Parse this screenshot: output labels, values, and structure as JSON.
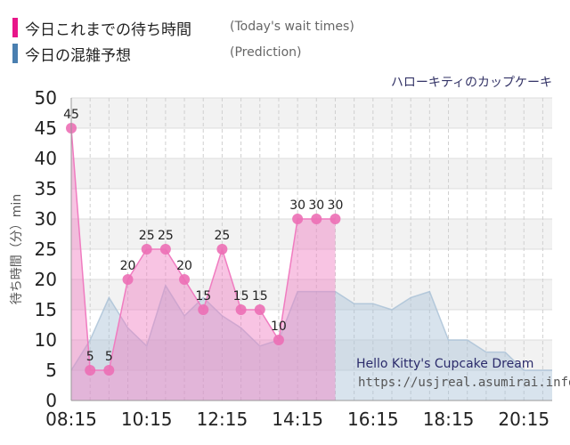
{
  "legend": {
    "today_label": "今日これまでの待ち時間",
    "today_label_en": "(Today's wait times)",
    "today_color": "#e8168a",
    "prediction_label": "今日の混雑予想",
    "prediction_label_en": "(Prediction)",
    "prediction_color": "#4a7fb0"
  },
  "attraction_name": "ハローキティのカップケーキ",
  "watermark": {
    "name": "Hello Kitty's Cupcake Dream",
    "url": "https://usjreal.asumirai.info"
  },
  "chart_data": {
    "type": "area",
    "ylabel": "待ち時間（分）min",
    "ylim": [
      0,
      50
    ],
    "yticks": [
      0,
      5,
      10,
      15,
      20,
      25,
      30,
      35,
      40,
      45,
      50
    ],
    "xlim": [
      "08:15",
      "21:00"
    ],
    "xticks": [
      "08:15",
      "10:15",
      "12:15",
      "14:15",
      "16:15",
      "18:15",
      "20:15"
    ],
    "grid": true,
    "series": [
      {
        "name": "今日これまでの待ち時間",
        "color": "#f07cc0",
        "points": [
          {
            "t": "08:15",
            "v": 45
          },
          {
            "t": "08:45",
            "v": 5
          },
          {
            "t": "09:15",
            "v": 5
          },
          {
            "t": "09:45",
            "v": 20
          },
          {
            "t": "10:15",
            "v": 25
          },
          {
            "t": "10:45",
            "v": 25
          },
          {
            "t": "11:15",
            "v": 20
          },
          {
            "t": "11:45",
            "v": 15
          },
          {
            "t": "12:15",
            "v": 25
          },
          {
            "t": "12:45",
            "v": 15
          },
          {
            "t": "13:15",
            "v": 15
          },
          {
            "t": "13:45",
            "v": 10
          },
          {
            "t": "14:15",
            "v": 30
          },
          {
            "t": "14:45",
            "v": 30
          },
          {
            "t": "15:15",
            "v": 30
          }
        ]
      },
      {
        "name": "今日の混雑予想",
        "color": "#a9c1d6",
        "points": [
          {
            "t": "08:15",
            "v": 5
          },
          {
            "t": "08:45",
            "v": 10
          },
          {
            "t": "09:15",
            "v": 17
          },
          {
            "t": "09:45",
            "v": 12
          },
          {
            "t": "10:15",
            "v": 9
          },
          {
            "t": "10:45",
            "v": 19
          },
          {
            "t": "11:15",
            "v": 14
          },
          {
            "t": "11:45",
            "v": 17
          },
          {
            "t": "12:15",
            "v": 14
          },
          {
            "t": "12:45",
            "v": 12
          },
          {
            "t": "13:15",
            "v": 9
          },
          {
            "t": "13:45",
            "v": 10
          },
          {
            "t": "14:15",
            "v": 18
          },
          {
            "t": "14:45",
            "v": 18
          },
          {
            "t": "15:15",
            "v": 18
          },
          {
            "t": "15:45",
            "v": 16
          },
          {
            "t": "16:15",
            "v": 16
          },
          {
            "t": "16:45",
            "v": 15
          },
          {
            "t": "17:15",
            "v": 17
          },
          {
            "t": "17:45",
            "v": 18
          },
          {
            "t": "18:15",
            "v": 10
          },
          {
            "t": "18:45",
            "v": 10
          },
          {
            "t": "19:15",
            "v": 8
          },
          {
            "t": "19:45",
            "v": 8
          },
          {
            "t": "20:15",
            "v": 5
          },
          {
            "t": "20:45",
            "v": 5
          },
          {
            "t": "21:00",
            "v": 5
          }
        ]
      }
    ]
  }
}
